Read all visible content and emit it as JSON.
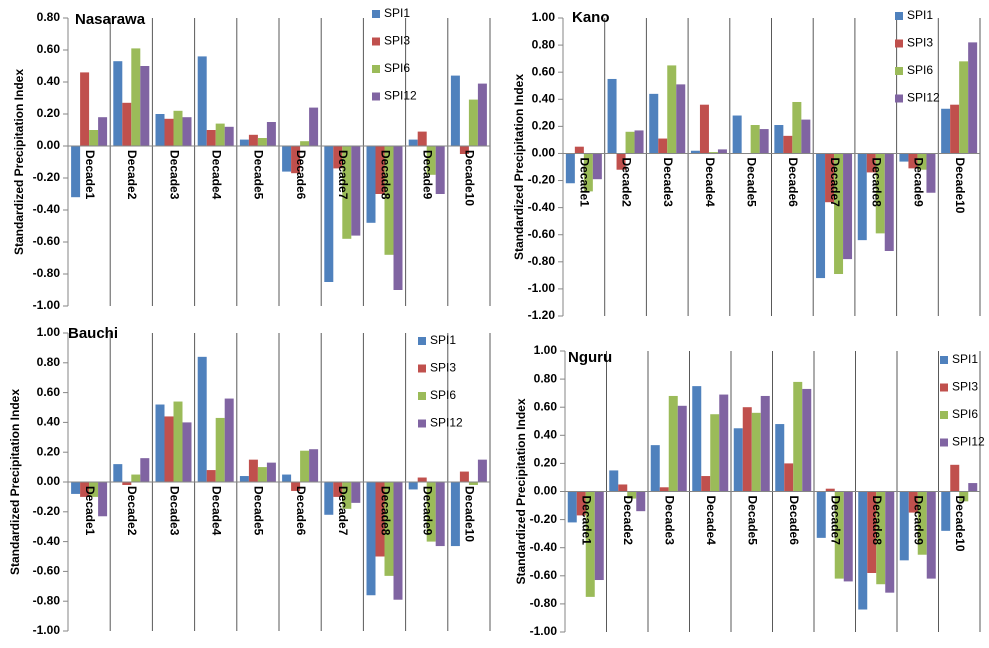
{
  "chart_data": [
    {
      "type": "bar",
      "title": "Nasarawa",
      "y_label": "Standardized Precipitation Index",
      "categories": [
        "Decade1",
        "Decade2",
        "Decade3",
        "Decade4",
        "Decade5",
        "Decade6",
        "Decade7",
        "Decade8",
        "Decade9",
        "Decade10"
      ],
      "series": [
        {
          "name": "SPI1",
          "color": "#4f81bd",
          "values": [
            -0.32,
            0.53,
            0.2,
            0.56,
            0.04,
            -0.16,
            -0.85,
            -0.48,
            0.04,
            0.44
          ]
        },
        {
          "name": "SPI3",
          "color": "#c0504d",
          "values": [
            0.46,
            0.27,
            0.17,
            0.1,
            0.07,
            -0.17,
            -0.14,
            -0.3,
            0.09,
            -0.05
          ]
        },
        {
          "name": "SPI6",
          "color": "#9bbb59",
          "values": [
            0.1,
            0.61,
            0.22,
            0.14,
            0.05,
            0.03,
            -0.58,
            -0.68,
            -0.18,
            0.29
          ]
        },
        {
          "name": "SPI12",
          "color": "#8064a2",
          "values": [
            0.18,
            0.5,
            0.18,
            0.12,
            0.15,
            0.24,
            -0.56,
            -0.9,
            -0.3,
            0.39
          ]
        }
      ],
      "ylim": [
        -1.0,
        0.8
      ],
      "yticks": [
        {
          "value": -1.0,
          "label": "-1.00"
        },
        {
          "value": -0.8,
          "label": "-0.80"
        },
        {
          "value": -0.6,
          "label": "-0.60"
        },
        {
          "value": -0.4,
          "label": "-0.40"
        },
        {
          "value": -0.2,
          "label": "-0.20"
        },
        {
          "value": 0,
          "label": "0.00"
        },
        {
          "value": 0.2,
          "label": "0.20"
        },
        {
          "value": 0.4,
          "label": "0.40"
        },
        {
          "value": 0.6,
          "label": "0.60"
        },
        {
          "value": 0.8,
          "label": "0.80"
        }
      ],
      "legend": "upper right"
    },
    {
      "type": "bar",
      "title": "Kano",
      "y_label": "Standardized Precipitation Index",
      "categories": [
        "Decade1",
        "Decade2",
        "Decade3",
        "Decade4",
        "Decade5",
        "Decade6",
        "Decade7",
        "Decade8",
        "Decade9",
        "Decade10"
      ],
      "series": [
        {
          "name": "SPI1",
          "color": "#4f81bd",
          "values": [
            -0.22,
            0.55,
            0.44,
            0.02,
            0.28,
            0.21,
            -0.92,
            -0.64,
            -0.06,
            0.33
          ]
        },
        {
          "name": "SPI3",
          "color": "#c0504d",
          "values": [
            0.05,
            -0.12,
            0.11,
            0.36,
            0.0,
            0.13,
            -0.36,
            -0.14,
            -0.11,
            0.36
          ]
        },
        {
          "name": "SPI6",
          "color": "#9bbb59",
          "values": [
            -0.28,
            0.16,
            0.65,
            0.01,
            0.21,
            0.38,
            -0.89,
            -0.59,
            -0.12,
            0.68
          ]
        },
        {
          "name": "SPI12",
          "color": "#8064a2",
          "values": [
            -0.19,
            0.17,
            0.51,
            0.03,
            0.18,
            0.25,
            -0.78,
            -0.72,
            -0.29,
            0.82
          ]
        }
      ],
      "ylim": [
        -1.2,
        1.0
      ],
      "yticks": [
        {
          "value": -1.2,
          "label": "-1.20"
        },
        {
          "value": -1.0,
          "label": "-1.00"
        },
        {
          "value": -0.8,
          "label": "-0.80"
        },
        {
          "value": -0.6,
          "label": "-0.60"
        },
        {
          "value": -0.4,
          "label": "-0.40"
        },
        {
          "value": -0.2,
          "label": "-0.20"
        },
        {
          "value": 0,
          "label": "0.00"
        },
        {
          "value": 0.2,
          "label": "0.20"
        },
        {
          "value": 0.4,
          "label": "0.40"
        },
        {
          "value": 0.6,
          "label": "0.60"
        },
        {
          "value": 0.8,
          "label": "0.80"
        },
        {
          "value": 1.0,
          "label": "1.00"
        }
      ],
      "legend": "upper right"
    },
    {
      "type": "bar",
      "title": "Bauchi",
      "y_label": "Standardized Precipitation Index",
      "categories": [
        "Decade1",
        "Decade2",
        "Decade3",
        "Decade4",
        "Decade5",
        "Decade6",
        "Decade7",
        "Decade8",
        "Decade9",
        "Decade10"
      ],
      "series": [
        {
          "name": "SPI1",
          "color": "#4f81bd",
          "values": [
            -0.08,
            0.12,
            0.52,
            0.84,
            0.04,
            0.05,
            -0.22,
            -0.76,
            -0.05,
            -0.43
          ]
        },
        {
          "name": "SPI3",
          "color": "#c0504d",
          "values": [
            -0.1,
            -0.02,
            0.44,
            0.08,
            0.15,
            -0.06,
            -0.1,
            -0.5,
            0.03,
            0.07
          ]
        },
        {
          "name": "SPI6",
          "color": "#9bbb59",
          "values": [
            -0.1,
            0.05,
            0.54,
            0.43,
            0.1,
            0.21,
            -0.18,
            -0.63,
            -0.4,
            -0.02
          ]
        },
        {
          "name": "SPI12",
          "color": "#8064a2",
          "values": [
            -0.23,
            0.16,
            0.4,
            0.56,
            0.13,
            0.22,
            -0.14,
            -0.79,
            -0.43,
            0.15
          ]
        }
      ],
      "ylim": [
        -1.0,
        1.0
      ],
      "yticks": [
        {
          "value": -1.0,
          "label": "-1.00"
        },
        {
          "value": -0.8,
          "label": "-0.80"
        },
        {
          "value": -0.6,
          "label": "-0.60"
        },
        {
          "value": -0.4,
          "label": "-0.40"
        },
        {
          "value": -0.2,
          "label": "-0.20"
        },
        {
          "value": 0,
          "label": "0.00"
        },
        {
          "value": 0.2,
          "label": "0.20"
        },
        {
          "value": 0.4,
          "label": "0.40"
        },
        {
          "value": 0.6,
          "label": "0.60"
        },
        {
          "value": 0.8,
          "label": "0.80"
        },
        {
          "value": 1.0,
          "label": "1.00"
        }
      ],
      "legend": "upper right"
    },
    {
      "type": "bar",
      "title": "Nguru",
      "y_label": "Standardized Precipitation Index",
      "categories": [
        "Decade1",
        "Decade2",
        "Decade3",
        "Decade4",
        "Decade5",
        "Decade6",
        "Decade7",
        "Decade8",
        "Decade9",
        "Decade10"
      ],
      "series": [
        {
          "name": "SPI1",
          "color": "#4f81bd",
          "values": [
            -0.22,
            0.15,
            0.33,
            0.75,
            0.45,
            0.48,
            -0.33,
            -0.84,
            -0.49,
            -0.28
          ]
        },
        {
          "name": "SPI3",
          "color": "#c0504d",
          "values": [
            -0.17,
            0.05,
            0.03,
            0.11,
            0.6,
            0.2,
            0.02,
            -0.58,
            -0.15,
            0.19
          ]
        },
        {
          "name": "SPI6",
          "color": "#9bbb59",
          "values": [
            -0.75,
            -0.05,
            0.68,
            0.55,
            0.56,
            0.78,
            -0.62,
            -0.66,
            -0.45,
            -0.07
          ]
        },
        {
          "name": "SPI12",
          "color": "#8064a2",
          "values": [
            -0.63,
            -0.14,
            0.61,
            0.69,
            0.68,
            0.73,
            -0.64,
            -0.72,
            -0.62,
            0.06
          ]
        }
      ],
      "ylim": [
        -1.0,
        1.0
      ],
      "yticks": [
        {
          "value": -1.0,
          "label": "-1.00"
        },
        {
          "value": -0.8,
          "label": "-0.80"
        },
        {
          "value": -0.6,
          "label": "-0.60"
        },
        {
          "value": -0.4,
          "label": "-0.40"
        },
        {
          "value": -0.2,
          "label": "-0.20"
        },
        {
          "value": 0,
          "label": "0.00"
        },
        {
          "value": 0.2,
          "label": "0.20"
        },
        {
          "value": 0.4,
          "label": "0.40"
        },
        {
          "value": 0.6,
          "label": "0.60"
        },
        {
          "value": 0.8,
          "label": "0.80"
        },
        {
          "value": 1.0,
          "label": "1.00"
        }
      ],
      "legend": "upper right"
    }
  ]
}
